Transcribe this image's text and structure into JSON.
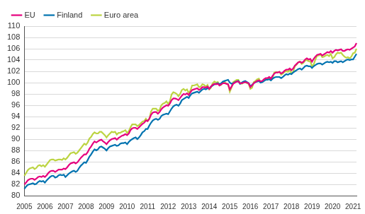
{
  "chart_data": {
    "type": "line",
    "categories": [
      "2005",
      null,
      null,
      null,
      null,
      null,
      null,
      null,
      null,
      null,
      null,
      null,
      "2006",
      null,
      null,
      null,
      null,
      null,
      null,
      null,
      null,
      null,
      null,
      null,
      "2007",
      null,
      null,
      null,
      null,
      null,
      null,
      null,
      null,
      null,
      null,
      null,
      "2008",
      null,
      null,
      null,
      null,
      null,
      null,
      null,
      null,
      null,
      null,
      null,
      "2009",
      null,
      null,
      null,
      null,
      null,
      null,
      null,
      null,
      null,
      null,
      null,
      "2010",
      null,
      null,
      null,
      null,
      null,
      null,
      null,
      null,
      null,
      null,
      null,
      "2011",
      null,
      null,
      null,
      null,
      null,
      null,
      null,
      null,
      null,
      null,
      null,
      "2012",
      null,
      null,
      null,
      null,
      null,
      null,
      null,
      null,
      null,
      null,
      null,
      "2013",
      null,
      null,
      null,
      null,
      null,
      null,
      null,
      null,
      null,
      null,
      null,
      "2014",
      null,
      null,
      null,
      null,
      null,
      null,
      null,
      null,
      null,
      null,
      null,
      "2015",
      null,
      null,
      null,
      null,
      null,
      null,
      null,
      null,
      null,
      null,
      null,
      "2016",
      null,
      null,
      null,
      null,
      null,
      null,
      null,
      null,
      null,
      null,
      null,
      "2017",
      null,
      null,
      null,
      null,
      null,
      null,
      null,
      null,
      null,
      null,
      null,
      "2018",
      null,
      null,
      null,
      null,
      null,
      null,
      null,
      null,
      null,
      null,
      null,
      "2019",
      null,
      null,
      null,
      null,
      null,
      null,
      null,
      null,
      null,
      null,
      null,
      "2020",
      null,
      null,
      null,
      null,
      null,
      null,
      null,
      null,
      null,
      null,
      null,
      "2021",
      null,
      null
    ],
    "series": [
      {
        "name": "EU",
        "color": "#e6007e",
        "values": [
          82.0,
          82.3,
          82.7,
          82.9,
          83.0,
          83.0,
          82.8,
          83.0,
          83.3,
          83.4,
          83.3,
          83.5,
          83.3,
          83.6,
          84.0,
          84.3,
          84.4,
          84.4,
          84.2,
          84.4,
          84.6,
          84.6,
          84.6,
          84.8,
          84.7,
          85.0,
          85.4,
          85.7,
          85.8,
          85.9,
          85.7,
          85.9,
          86.3,
          86.7,
          87.0,
          87.3,
          87.3,
          87.7,
          88.3,
          88.7,
          89.2,
          89.6,
          89.4,
          89.6,
          89.8,
          89.9,
          89.6,
          89.4,
          89.1,
          89.5,
          89.8,
          90.0,
          90.1,
          90.2,
          89.9,
          90.2,
          90.4,
          90.6,
          90.7,
          90.9,
          90.7,
          91.0,
          91.6,
          91.9,
          92.0,
          92.0,
          91.8,
          92.1,
          92.4,
          92.7,
          92.9,
          93.3,
          93.2,
          93.6,
          94.3,
          94.7,
          94.8,
          94.8,
          94.5,
          94.8,
          95.3,
          95.6,
          95.8,
          96.0,
          95.9,
          96.3,
          96.9,
          97.2,
          97.2,
          97.1,
          96.9,
          97.3,
          97.7,
          98.0,
          97.9,
          98.1,
          97.8,
          98.3,
          98.7,
          98.8,
          98.9,
          99.0,
          98.7,
          98.9,
          99.2,
          99.2,
          99.1,
          99.3,
          98.9,
          99.3,
          99.6,
          99.8,
          99.7,
          99.8,
          99.5,
          99.7,
          99.9,
          99.9,
          99.8,
          99.7,
          98.8,
          99.3,
          99.8,
          100.0,
          100.2,
          100.2,
          99.9,
          99.9,
          100.0,
          100.1,
          100.0,
          99.9,
          99.2,
          99.5,
          99.9,
          100.1,
          100.3,
          100.4,
          100.2,
          100.3,
          100.6,
          100.8,
          100.8,
          101.0,
          100.7,
          101.2,
          101.6,
          101.8,
          101.8,
          101.9,
          101.6,
          101.8,
          102.1,
          102.3,
          102.3,
          102.5,
          102.2,
          102.5,
          103.0,
          103.3,
          103.6,
          103.7,
          103.5,
          103.7,
          104.1,
          104.3,
          104.1,
          104.2,
          103.7,
          104.2,
          104.6,
          104.9,
          105.0,
          105.1,
          104.8,
          105.0,
          105.2,
          105.4,
          105.3,
          105.6,
          105.3,
          105.6,
          105.8,
          105.7,
          105.8,
          105.9,
          105.6,
          105.6,
          105.8,
          105.9,
          105.8,
          106.0,
          106.2,
          106.4,
          107.0
        ]
      },
      {
        "name": "Finland",
        "color": "#0073b0",
        "values": [
          81.2,
          81.6,
          81.9,
          82.0,
          82.1,
          82.2,
          82.0,
          82.1,
          82.4,
          82.6,
          82.5,
          82.6,
          82.3,
          82.7,
          83.0,
          83.3,
          83.5,
          83.5,
          83.2,
          83.3,
          83.6,
          83.7,
          83.6,
          83.7,
          83.3,
          83.6,
          83.9,
          84.1,
          84.3,
          84.4,
          84.2,
          84.4,
          84.9,
          85.3,
          85.6,
          85.9,
          85.8,
          86.3,
          86.9,
          87.3,
          87.8,
          88.2,
          88.0,
          88.2,
          88.6,
          88.7,
          88.5,
          88.3,
          88.0,
          88.4,
          88.7,
          88.8,
          88.9,
          89.0,
          88.8,
          88.9,
          89.2,
          89.3,
          89.3,
          89.4,
          89.1,
          89.5,
          89.8,
          90.0,
          90.2,
          90.3,
          90.0,
          90.3,
          90.7,
          91.2,
          91.4,
          91.8,
          91.8,
          92.4,
          92.9,
          93.3,
          93.5,
          93.6,
          93.4,
          93.6,
          94.1,
          94.3,
          94.4,
          94.5,
          94.4,
          94.9,
          95.4,
          95.8,
          96.0,
          96.1,
          95.9,
          96.3,
          96.9,
          97.1,
          97.3,
          97.5,
          97.3,
          97.8,
          98.1,
          98.2,
          98.3,
          98.4,
          98.2,
          98.5,
          98.8,
          98.9,
          98.8,
          99.0,
          98.9,
          99.3,
          99.5,
          99.7,
          99.8,
          99.9,
          99.7,
          99.9,
          100.2,
          100.3,
          100.4,
          100.5,
          100.0,
          99.8,
          99.9,
          100.1,
          100.2,
          100.3,
          99.8,
          100.0,
          100.2,
          100.3,
          100.1,
          99.9,
          99.4,
          99.6,
          99.9,
          100.1,
          100.2,
          100.3,
          100.0,
          100.1,
          100.3,
          100.5,
          100.5,
          100.6,
          100.4,
          100.7,
          100.9,
          101.0,
          101.0,
          101.0,
          100.8,
          101.0,
          101.3,
          101.5,
          101.4,
          101.6,
          101.5,
          101.8,
          102.0,
          102.2,
          102.4,
          102.5,
          102.3,
          102.6,
          102.9,
          103.0,
          102.9,
          102.9,
          102.6,
          102.9,
          103.1,
          103.3,
          103.4,
          103.4,
          103.2,
          103.4,
          103.6,
          103.7,
          103.6,
          103.7,
          103.5,
          103.8,
          103.8,
          103.6,
          103.7,
          103.8,
          103.6,
          103.8,
          104.0,
          104.1,
          104.0,
          104.1,
          104.1,
          104.6,
          105.1
        ]
      },
      {
        "name": "Euro area",
        "color": "#bcd442",
        "values": [
          83.5,
          84.0,
          84.5,
          84.8,
          84.9,
          85.0,
          84.7,
          84.9,
          85.3,
          85.4,
          85.2,
          85.4,
          85.1,
          85.5,
          85.9,
          86.3,
          86.4,
          86.4,
          86.2,
          86.3,
          86.4,
          86.4,
          86.3,
          86.6,
          86.4,
          86.7,
          87.1,
          87.5,
          87.6,
          87.7,
          87.4,
          87.6,
          88.0,
          88.4,
          88.8,
          89.2,
          89.0,
          89.4,
          90.1,
          90.4,
          90.9,
          91.2,
          91.0,
          91.0,
          91.3,
          91.3,
          91.0,
          90.7,
          90.3,
          90.7,
          91.0,
          91.3,
          91.2,
          91.3,
          90.8,
          91.1,
          91.1,
          91.3,
          91.4,
          91.6,
          91.1,
          91.4,
          92.1,
          92.6,
          92.6,
          92.6,
          92.3,
          92.5,
          92.8,
          93.1,
          93.2,
          93.6,
          93.2,
          93.6,
          94.9,
          95.4,
          95.4,
          95.4,
          95.0,
          95.2,
          96.0,
          96.3,
          96.4,
          96.7,
          96.2,
          96.7,
          97.9,
          98.3,
          98.2,
          98.0,
          97.6,
          98.0,
          98.7,
          98.9,
          98.6,
          98.8,
          98.2,
          98.6,
          99.5,
          99.5,
          99.6,
          99.7,
          99.2,
          99.3,
          99.7,
          99.6,
          99.3,
          99.6,
          98.8,
          99.1,
          99.9,
          100.2,
          100.0,
          100.1,
          99.5,
          99.6,
          100.1,
          100.1,
          99.8,
          99.7,
          98.4,
          99.1,
          100.1,
          100.3,
          100.5,
          100.5,
          99.9,
          99.8,
          100.0,
          100.1,
          99.9,
          99.8,
          98.9,
          99.1,
          100.1,
          100.3,
          100.6,
          100.7,
          100.1,
          100.2,
          100.5,
          100.6,
          100.5,
          100.9,
          100.5,
          100.9,
          101.8,
          101.9,
          101.8,
          101.9,
          101.4,
          101.6,
          101.9,
          102.0,
          101.9,
          102.3,
          101.6,
          101.9,
          102.9,
          103.2,
          103.6,
          103.7,
          103.3,
          103.5,
          103.9,
          104.0,
          103.8,
          103.8,
          102.9,
          103.2,
          104.1,
          104.8,
          104.8,
          105.0,
          104.5,
          104.6,
          104.8,
          104.9,
          104.7,
          105.1,
          104.3,
          104.5,
          105.0,
          105.3,
          105.2,
          105.3,
          104.9,
          104.6,
          104.4,
          104.5,
          104.3,
          104.6,
          105.2,
          105.3,
          106.0
        ]
      }
    ],
    "ylim": [
      80,
      110
    ],
    "yticks": [
      80,
      82,
      84,
      86,
      88,
      90,
      92,
      94,
      96,
      98,
      100,
      102,
      104,
      106,
      108,
      110
    ],
    "grid": true,
    "legend": "upper left"
  }
}
